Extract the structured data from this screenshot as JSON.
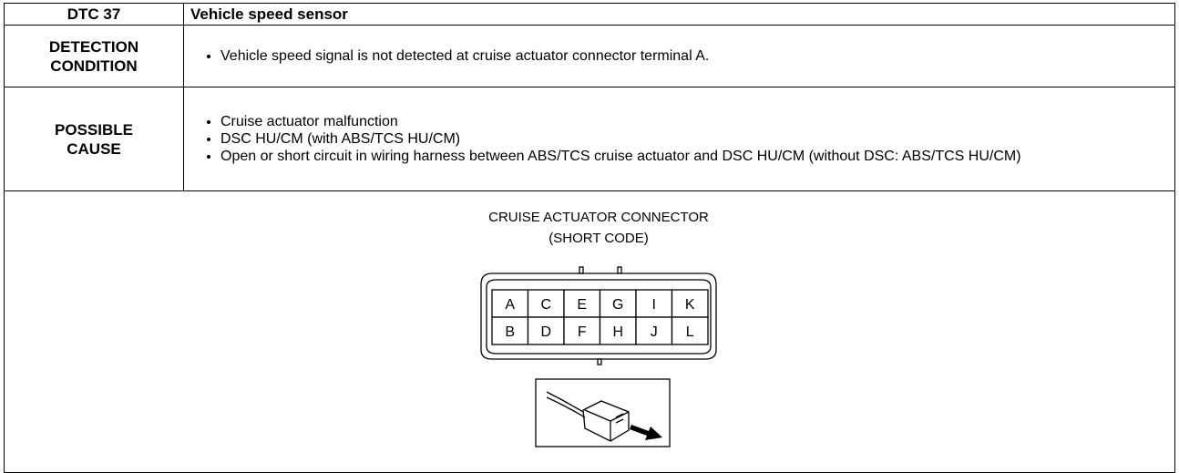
{
  "table": {
    "header": {
      "code": "DTC 37",
      "title": "Vehicle speed sensor"
    },
    "rows": [
      {
        "label": "DETECTION CONDITION",
        "items": [
          "Vehicle speed signal is not detected at cruise actuator connector terminal A."
        ]
      },
      {
        "label": "POSSIBLE CAUSE",
        "items": [
          "Cruise actuator malfunction",
          "DSC HU/CM (with ABS/TCS HU/CM)",
          "Open or short circuit in wiring harness between ABS/TCS cruise actuator and DSC HU/CM (without DSC: ABS/TCS HU/CM)"
        ]
      }
    ]
  },
  "diagram": {
    "title": "CRUISE ACTUATOR CONNECTOR",
    "subtitle": "(SHORT CODE)",
    "pins": [
      [
        "A",
        "C",
        "E",
        "G",
        "I",
        "K"
      ],
      [
        "B",
        "D",
        "F",
        "H",
        "J",
        "L"
      ]
    ]
  }
}
